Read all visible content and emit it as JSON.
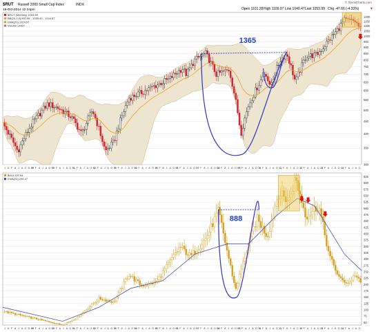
{
  "header": {
    "symbol": "$RUT",
    "name": "Russell 2000 Small Cap Index",
    "exchange": "INDX",
    "date": "15-Oct-2014 12:34pm",
    "watermark": "© StockCharts.com",
    "open": "Open 1101.28",
    "high": "High 1109.97",
    "low": "Low 1040.47",
    "close": "Last 1053.99",
    "change": "Chg -47.66 (-4.33%)",
    "change_arrow": "▼"
  },
  "legend_top": [
    {
      "text": "$RUT (Monthly) 1053.99",
      "color": "#d42030"
    },
    {
      "text": "BB(20,2.0) 902.98 - 1055.40 - 1244.67",
      "color": "#c8a070"
    },
    {
      "text": "EMA(20) 1024.57",
      "color": "#e8a020"
    },
    {
      "text": "Volume undef",
      "color": "#888888"
    }
  ],
  "legend_bottom": [
    {
      "text": "$HUI 197.94",
      "color": "#d4a020"
    },
    {
      "text": "EMA(24) 255.47",
      "color": "#4040c0"
    }
  ],
  "x_tick_labels": [
    "J",
    "D",
    "F",
    "A",
    "J",
    "A",
    "O",
    "D",
    "99",
    "F",
    "A",
    "J",
    "A",
    "O",
    "00",
    "F",
    "A",
    "J",
    "A",
    "O",
    "01",
    "F",
    "A",
    "J",
    "A",
    "O",
    "02",
    "F",
    "A",
    "J",
    "A",
    "O",
    "03",
    "F",
    "A",
    "J",
    "A",
    "O",
    "04",
    "F",
    "A",
    "J",
    "A",
    "O",
    "05",
    "F",
    "A",
    "J",
    "A",
    "O",
    "06",
    "F",
    "A",
    "J",
    "A",
    "O",
    "07",
    "F",
    "A",
    "J",
    "A",
    "O",
    "08",
    "F",
    "A",
    "J",
    "A",
    "O",
    "09",
    "F",
    "A",
    "J",
    "A",
    "O",
    "10",
    "F",
    "A",
    "J",
    "A",
    "O",
    "11",
    "F",
    "A",
    "J",
    "A",
    "O",
    "12",
    "F",
    "A",
    "J",
    "A",
    "O",
    "13",
    "F",
    "A",
    "J",
    "A",
    "O",
    "14",
    "F",
    "A",
    "J",
    "A",
    "O"
  ],
  "colors": {
    "up_candle": "#202020",
    "down_candle": "#d42030",
    "bb_fill": "#ede5d0",
    "bb_line": "#c8a070",
    "ema_top": "#e8a020",
    "hui_bar": "#d4a020",
    "ema_bottom": "#5050b0",
    "cup_line": "#3030c8",
    "annotation": "#2040d0",
    "highlight": "#f0c850",
    "arrow": "#e01010",
    "grid": "#e6e6e6"
  },
  "annotations": {
    "rut_cup_label": "1365",
    "hui_cup_label": "888"
  },
  "chart_data": [
    {
      "type": "candlestick",
      "series_name": "$RUT (Monthly)",
      "x_range": [
        1998.0,
        2014.8
      ],
      "ylim": [
        300,
        1250
      ],
      "log_scale": true,
      "y_ticks": [
        300,
        350,
        400,
        450,
        500,
        550,
        600,
        650,
        700,
        750,
        800,
        850,
        900,
        950,
        1000,
        1050,
        1100,
        1150,
        1200
      ],
      "grid": true,
      "key_points": [
        {
          "x": 1998.0,
          "close": 440
        },
        {
          "x": 1998.7,
          "close": 340
        },
        {
          "x": 1999.3,
          "close": 430
        },
        {
          "x": 2000.1,
          "close": 530
        },
        {
          "x": 2000.6,
          "close": 510
        },
        {
          "x": 2001.2,
          "close": 470
        },
        {
          "x": 2001.7,
          "close": 400
        },
        {
          "x": 2002.2,
          "close": 500
        },
        {
          "x": 2002.8,
          "close": 340
        },
        {
          "x": 2003.2,
          "close": 370
        },
        {
          "x": 2003.9,
          "close": 560
        },
        {
          "x": 2004.5,
          "close": 590
        },
        {
          "x": 2005.0,
          "close": 620
        },
        {
          "x": 2005.8,
          "close": 670
        },
        {
          "x": 2006.4,
          "close": 740
        },
        {
          "x": 2006.6,
          "close": 700
        },
        {
          "x": 2007.0,
          "close": 800
        },
        {
          "x": 2007.5,
          "close": 850
        },
        {
          "x": 2008.0,
          "close": 700
        },
        {
          "x": 2008.6,
          "close": 730
        },
        {
          "x": 2009.15,
          "close": 400
        },
        {
          "x": 2009.5,
          "close": 520
        },
        {
          "x": 2010.0,
          "close": 640
        },
        {
          "x": 2010.3,
          "close": 720
        },
        {
          "x": 2010.5,
          "close": 620
        },
        {
          "x": 2011.0,
          "close": 800
        },
        {
          "x": 2011.3,
          "close": 850
        },
        {
          "x": 2011.7,
          "close": 650
        },
        {
          "x": 2012.2,
          "close": 830
        },
        {
          "x": 2012.7,
          "close": 840
        },
        {
          "x": 2013.0,
          "close": 900
        },
        {
          "x": 2013.6,
          "close": 1040
        },
        {
          "x": 2014.0,
          "close": 1160
        },
        {
          "x": 2014.5,
          "close": 1150
        },
        {
          "x": 2014.8,
          "close": 1054
        }
      ],
      "annotations": [
        {
          "type": "cup",
          "label": "1365",
          "rim_left": [
            2007.3,
            850
          ],
          "rim_right": [
            2011.3,
            860
          ],
          "bottom": [
            2009.2,
            330
          ]
        },
        {
          "type": "handle",
          "rim_left": [
            2010.2,
            740
          ],
          "bottom": [
            2010.55,
            620
          ],
          "rim_right": [
            2011.3,
            860
          ]
        },
        {
          "type": "highlight_box",
          "x": [
            2013.9,
            2014.8
          ],
          "y": [
            1090,
            1250
          ]
        },
        {
          "type": "down_arrow",
          "x": 2014.75,
          "y": 990
        }
      ]
    },
    {
      "type": "bar",
      "series_name": "$HUI",
      "x_range": [
        1998.0,
        2014.8
      ],
      "ylim": [
        40,
        640
      ],
      "y_ticks": [
        50,
        75,
        100,
        125,
        150,
        175,
        200,
        225,
        250,
        275,
        300,
        325,
        350,
        375,
        400,
        425,
        450,
        475,
        500,
        525,
        550,
        575,
        600,
        625
      ],
      "grid": true,
      "key_points": [
        {
          "x": 1998.0,
          "close": 95
        },
        {
          "x": 1999.0,
          "close": 75
        },
        {
          "x": 1999.8,
          "close": 60
        },
        {
          "x": 2000.8,
          "close": 40
        },
        {
          "x": 2001.5,
          "close": 70
        },
        {
          "x": 2002.5,
          "close": 145
        },
        {
          "x": 2003.2,
          "close": 130
        },
        {
          "x": 2003.9,
          "close": 240
        },
        {
          "x": 2004.5,
          "close": 195
        },
        {
          "x": 2005.2,
          "close": 210
        },
        {
          "x": 2006.3,
          "close": 350
        },
        {
          "x": 2006.8,
          "close": 310
        },
        {
          "x": 2007.5,
          "close": 380
        },
        {
          "x": 2008.1,
          "close": 490
        },
        {
          "x": 2008.9,
          "close": 180
        },
        {
          "x": 2009.3,
          "close": 300
        },
        {
          "x": 2009.9,
          "close": 460
        },
        {
          "x": 2010.4,
          "close": 390
        },
        {
          "x": 2010.9,
          "close": 560
        },
        {
          "x": 2011.4,
          "close": 530
        },
        {
          "x": 2011.7,
          "close": 620
        },
        {
          "x": 2012.2,
          "close": 470
        },
        {
          "x": 2012.8,
          "close": 510
        },
        {
          "x": 2013.3,
          "close": 310
        },
        {
          "x": 2013.8,
          "close": 220
        },
        {
          "x": 2014.2,
          "close": 205
        },
        {
          "x": 2014.5,
          "close": 240
        },
        {
          "x": 2014.8,
          "close": 198
        }
      ],
      "ema_points": [
        {
          "x": 1998.0,
          "y": 110
        },
        {
          "x": 2000.8,
          "y": 55
        },
        {
          "x": 2002.5,
          "y": 110
        },
        {
          "x": 2004.0,
          "y": 185
        },
        {
          "x": 2005.5,
          "y": 215
        },
        {
          "x": 2007.0,
          "y": 320
        },
        {
          "x": 2008.5,
          "y": 360
        },
        {
          "x": 2009.5,
          "y": 360
        },
        {
          "x": 2010.8,
          "y": 470
        },
        {
          "x": 2011.8,
          "y": 540
        },
        {
          "x": 2012.6,
          "y": 510
        },
        {
          "x": 2013.2,
          "y": 430
        },
        {
          "x": 2014.0,
          "y": 320
        },
        {
          "x": 2014.8,
          "y": 255
        }
      ],
      "annotations": [
        {
          "type": "cup",
          "label": "888",
          "rim_left": [
            2008.1,
            495
          ],
          "rim_right": [
            2010.0,
            495
          ],
          "bottom": [
            2008.95,
            150
          ]
        },
        {
          "type": "highlight_box",
          "x": [
            2010.9,
            2011.9
          ],
          "y": [
            490,
            630
          ]
        },
        {
          "type": "down_arrow",
          "x": 2012.0,
          "y": 535
        },
        {
          "type": "down_arrow",
          "x": 2012.3,
          "y": 530
        },
        {
          "type": "down_arrow",
          "x": 2013.1,
          "y": 475
        }
      ]
    }
  ]
}
